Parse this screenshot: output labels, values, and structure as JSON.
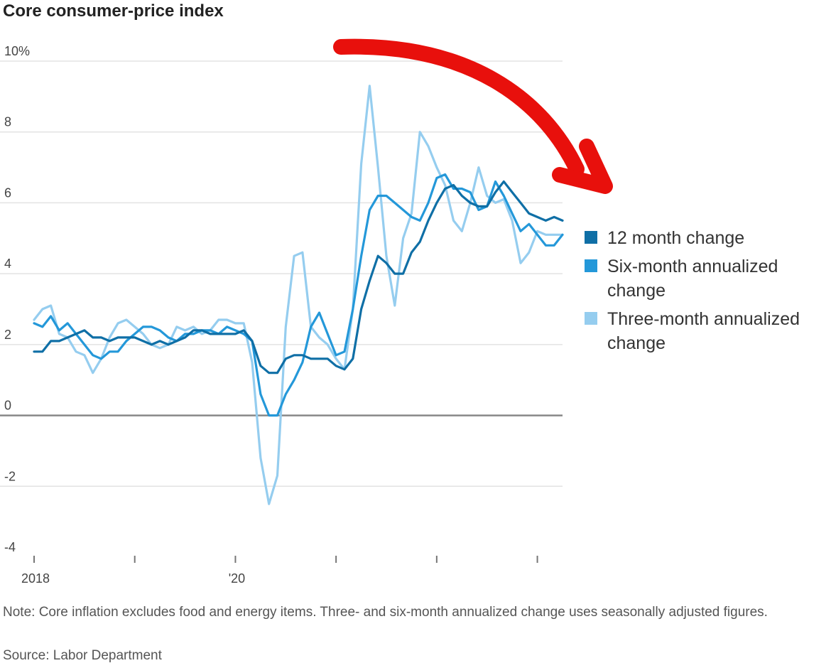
{
  "colors": {
    "series_12_month": "#0f6fa6",
    "series_six_month": "#2498d9",
    "series_three_month": "#95cdef",
    "gridline": "#e3e3e3",
    "zero_line": "#888888",
    "annotation_arrow": "#e8100c"
  },
  "annotation": {
    "icon": "red-curved-arrow-icon"
  },
  "chart_data": {
    "type": "line",
    "title": "Core consumer-price index",
    "xlabel": "",
    "ylabel": "",
    "y_unit": "%",
    "ylim": [
      -4,
      10
    ],
    "xlim": [
      "2018-01",
      "2023-04"
    ],
    "yticks": [
      {
        "value": -4,
        "label": "-4"
      },
      {
        "value": -2,
        "label": "-2"
      },
      {
        "value": 0,
        "label": "0"
      },
      {
        "value": 2,
        "label": "2"
      },
      {
        "value": 4,
        "label": "4"
      },
      {
        "value": 6,
        "label": "6"
      },
      {
        "value": 8,
        "label": "8"
      },
      {
        "value": 10,
        "label": "10%"
      }
    ],
    "xticks": [
      {
        "x": "2018-01",
        "label": "2018"
      },
      {
        "x": "2019-01",
        "label": ""
      },
      {
        "x": "2020-01",
        "label": "'20"
      },
      {
        "x": "2021-01",
        "label": ""
      },
      {
        "x": "2022-01",
        "label": ""
      },
      {
        "x": "2023-01",
        "label": ""
      }
    ],
    "grid": true,
    "legend": "right",
    "x": [
      "2018-01",
      "2018-02",
      "2018-03",
      "2018-04",
      "2018-05",
      "2018-06",
      "2018-07",
      "2018-08",
      "2018-09",
      "2018-10",
      "2018-11",
      "2018-12",
      "2019-01",
      "2019-02",
      "2019-03",
      "2019-04",
      "2019-05",
      "2019-06",
      "2019-07",
      "2019-08",
      "2019-09",
      "2019-10",
      "2019-11",
      "2019-12",
      "2020-01",
      "2020-02",
      "2020-03",
      "2020-04",
      "2020-05",
      "2020-06",
      "2020-07",
      "2020-08",
      "2020-09",
      "2020-10",
      "2020-11",
      "2020-12",
      "2021-01",
      "2021-02",
      "2021-03",
      "2021-04",
      "2021-05",
      "2021-06",
      "2021-07",
      "2021-08",
      "2021-09",
      "2021-10",
      "2021-11",
      "2021-12",
      "2022-01",
      "2022-02",
      "2022-03",
      "2022-04",
      "2022-05",
      "2022-06",
      "2022-07",
      "2022-08",
      "2022-09",
      "2022-10",
      "2022-11",
      "2022-12",
      "2023-01",
      "2023-02",
      "2023-03",
      "2023-04"
    ],
    "series": [
      {
        "name": "12 month change",
        "color_key": "series_12_month",
        "values": [
          1.8,
          1.8,
          2.1,
          2.1,
          2.2,
          2.3,
          2.4,
          2.2,
          2.2,
          2.1,
          2.2,
          2.2,
          2.2,
          2.1,
          2.0,
          2.1,
          2.0,
          2.1,
          2.2,
          2.4,
          2.4,
          2.3,
          2.3,
          2.3,
          2.3,
          2.4,
          2.1,
          1.4,
          1.2,
          1.2,
          1.6,
          1.7,
          1.7,
          1.6,
          1.6,
          1.6,
          1.4,
          1.3,
          1.6,
          3.0,
          3.8,
          4.5,
          4.3,
          4.0,
          4.0,
          4.6,
          4.9,
          5.5,
          6.0,
          6.4,
          6.5,
          6.2,
          6.0,
          5.9,
          5.9,
          6.3,
          6.6,
          6.3,
          6.0,
          5.7,
          5.6,
          5.5,
          5.6,
          5.5
        ]
      },
      {
        "name": "Six-month annualized change",
        "color_key": "series_six_month",
        "values": [
          2.6,
          2.5,
          2.8,
          2.4,
          2.6,
          2.3,
          2.0,
          1.7,
          1.6,
          1.8,
          1.8,
          2.1,
          2.3,
          2.5,
          2.5,
          2.4,
          2.2,
          2.1,
          2.3,
          2.3,
          2.4,
          2.4,
          2.3,
          2.5,
          2.4,
          2.3,
          2.1,
          0.6,
          0.0,
          0.0,
          0.6,
          1.0,
          1.5,
          2.5,
          2.9,
          2.3,
          1.7,
          1.8,
          3.0,
          4.5,
          5.8,
          6.2,
          6.2,
          6.0,
          5.8,
          5.6,
          5.5,
          6.0,
          6.7,
          6.8,
          6.4,
          6.4,
          6.3,
          5.8,
          5.9,
          6.6,
          6.2,
          5.7,
          5.2,
          5.4,
          5.1,
          4.8,
          4.8,
          5.1
        ]
      },
      {
        "name": "Three-month annualized change",
        "color_key": "series_three_month",
        "values": [
          2.7,
          3.0,
          3.1,
          2.3,
          2.2,
          1.8,
          1.7,
          1.2,
          1.6,
          2.2,
          2.6,
          2.7,
          2.5,
          2.3,
          2.0,
          1.9,
          2.0,
          2.5,
          2.4,
          2.5,
          2.3,
          2.4,
          2.7,
          2.7,
          2.6,
          2.6,
          1.5,
          -1.2,
          -2.5,
          -1.7,
          2.5,
          4.5,
          4.6,
          2.5,
          2.2,
          2.0,
          1.6,
          1.3,
          3.0,
          7.1,
          9.3,
          7.0,
          4.5,
          3.1,
          5.0,
          5.7,
          8.0,
          7.6,
          7.0,
          6.5,
          5.5,
          5.2,
          6.0,
          7.0,
          6.2,
          6.0,
          6.1,
          5.5,
          4.3,
          4.6,
          5.2,
          5.1,
          5.1,
          5.1
        ]
      }
    ]
  },
  "note": "Note: Core inflation excludes food and energy items. Three- and six-month annualized change uses seasonally adjusted figures.",
  "source": "Source: Labor Department"
}
